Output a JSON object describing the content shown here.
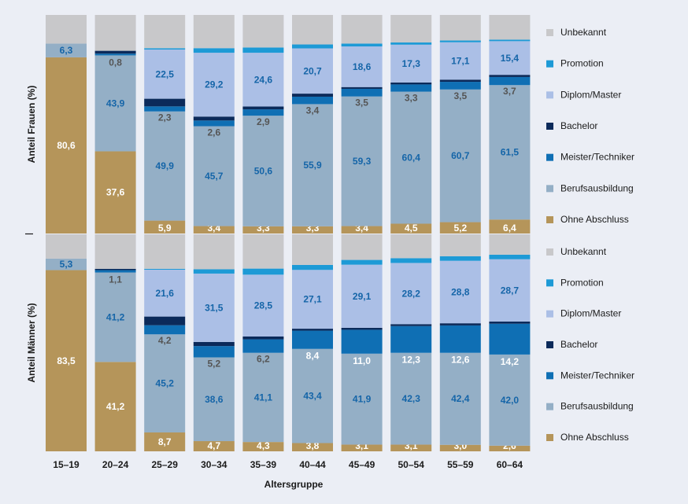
{
  "chart_data": {
    "type": "bar",
    "stacked": true,
    "xlabel": "Altersgruppe",
    "categories": [
      "15–19",
      "20–24",
      "25–29",
      "30–34",
      "35–39",
      "40–44",
      "45–49",
      "50–54",
      "55–59",
      "60–64"
    ],
    "colors": {
      "Ohne Abschluss": "#b5955a",
      "Berufsausbildung": "#94afc6",
      "Meister/Techniker": "#0f6fb4",
      "Bachelor": "#0b2a5a",
      "Diplom/Master": "#abbfe6",
      "Promotion": "#1d9ad6",
      "Unbekannt": "#c8c8ca"
    },
    "series_order": [
      "Ohne Abschluss",
      "Berufsausbildung",
      "Meister/Techniker",
      "Bachelor",
      "Diplom/Master",
      "Promotion",
      "Unbekannt"
    ],
    "panels": [
      {
        "ylabel": "Anteil Frauen (%)",
        "legend": [
          "Unbekannt",
          "Promotion",
          "Diplom/Master",
          "Bachelor",
          "Meister/Techniker",
          "Berufsausbildung",
          "Ohne Abschluss"
        ],
        "series": [
          {
            "name": "Ohne Abschluss",
            "values": [
              80.6,
              37.6,
              5.9,
              3.4,
              3.3,
              3.3,
              3.4,
              4.5,
              5.2,
              6.4
            ],
            "labels": [
              "80,6",
              "37,6",
              "5,9",
              "3,4",
              "3,3",
              "3,3",
              "3,4",
              "4,5",
              "5,2",
              "6,4"
            ]
          },
          {
            "name": "Berufsausbildung",
            "values": [
              6.3,
              43.9,
              49.9,
              45.7,
              50.6,
              55.9,
              59.3,
              60.4,
              60.7,
              61.5
            ],
            "labels": [
              "6,3",
              "43,9",
              "49,9",
              "45,7",
              "50,6",
              "55,9",
              "59,3",
              "60,4",
              "60,7",
              "61,5"
            ]
          },
          {
            "name": "Meister/Techniker",
            "values": [
              0,
              0.8,
              2.3,
              2.6,
              2.9,
              3.4,
              3.5,
              3.3,
              3.5,
              3.7
            ],
            "labels": [
              "",
              "0,8",
              "2,3",
              "2,6",
              "2,9",
              "3,4",
              "3,5",
              "3,3",
              "3,5",
              "3,7"
            ]
          },
          {
            "name": "Bachelor",
            "values": [
              0,
              1.3,
              3.5,
              1.8,
              1.3,
              1.4,
              0.8,
              0.9,
              1.0,
              1.0
            ],
            "labels": [
              "",
              "",
              "",
              "",
              "",
              "",
              "",
              "",
              "",
              ""
            ]
          },
          {
            "name": "Diplom/Master",
            "values": [
              0,
              0,
              22.5,
              29.2,
              24.6,
              20.7,
              18.6,
              17.3,
              17.1,
              15.4
            ],
            "labels": [
              "",
              "",
              "22,5",
              "29,2",
              "24,6",
              "20,7",
              "18,6",
              "17,3",
              "17,1",
              "15,4"
            ]
          },
          {
            "name": "Promotion",
            "values": [
              0,
              0,
              0.6,
              2.1,
              2.4,
              1.8,
              1.3,
              1.0,
              0.8,
              0.7
            ],
            "labels": [
              "",
              "",
              "0,6",
              "2,1",
              "2,4",
              "1,8",
              "1,3",
              "1,0",
              "0,8",
              "0,7"
            ]
          },
          {
            "name": "Unbekannt",
            "values": [
              13.1,
              16.4,
              15.2,
              15.2,
              14.9,
              13.5,
              13.1,
              12.6,
              11.7,
              11.3
            ],
            "labels": [
              "",
              "",
              "",
              "",
              "",
              "",
              "",
              "",
              "",
              ""
            ]
          }
        ]
      },
      {
        "ylabel": "Anteil Männer (%)",
        "legend": [
          "Unbekannt",
          "Promotion",
          "Diplom/Master",
          "Bachelor",
          "Meister/Techniker",
          "Berufsausbildung",
          "Ohne Abschluss"
        ],
        "series": [
          {
            "name": "Ohne Abschluss",
            "values": [
              83.5,
              41.2,
              8.7,
              4.7,
              4.3,
              3.8,
              3.1,
              3.1,
              3.0,
              2.6
            ],
            "labels": [
              "83,5",
              "41,2",
              "8,7",
              "4,7",
              "4,3",
              "3,8",
              "3,1",
              "3,1",
              "3,0",
              "2,6"
            ]
          },
          {
            "name": "Berufsausbildung",
            "values": [
              5.3,
              41.2,
              45.2,
              38.6,
              41.1,
              43.4,
              41.9,
              42.3,
              42.4,
              42.0
            ],
            "labels": [
              "5,3",
              "41,2",
              "45,2",
              "38,6",
              "41,1",
              "43,4",
              "41,9",
              "42,3",
              "42,4",
              "42,0"
            ]
          },
          {
            "name": "Meister/Techniker",
            "values": [
              0,
              1.1,
              4.2,
              5.2,
              6.2,
              8.4,
              11.0,
              12.3,
              12.6,
              14.2
            ],
            "labels": [
              "",
              "1,1",
              "4,2",
              "5,2",
              "6,2",
              "8,4",
              "11,0",
              "12,3",
              "12,6",
              "14,2"
            ]
          },
          {
            "name": "Bachelor",
            "values": [
              0,
              0.6,
              4.0,
              1.9,
              1.3,
              0.9,
              0.9,
              0.9,
              1.0,
              1.0
            ],
            "labels": [
              "",
              "",
              "",
              "",
              "",
              "",
              "",
              "",
              "",
              ""
            ]
          },
          {
            "name": "Diplom/Master",
            "values": [
              0,
              0,
              21.6,
              31.5,
              28.5,
              27.1,
              29.1,
              28.2,
              28.8,
              28.7
            ],
            "labels": [
              "",
              "",
              "21,6",
              "31,5",
              "28,5",
              "27,1",
              "29,1",
              "28,2",
              "28,8",
              "28,7"
            ]
          },
          {
            "name": "Promotion",
            "values": [
              0,
              0,
              0.4,
              2.0,
              2.8,
              2.3,
              2.2,
              2.2,
              2.1,
              2.1
            ],
            "labels": [
              "",
              "",
              "0,4",
              "2,0",
              "2,8",
              "2,3",
              "2,2",
              "2,2",
              "2,1",
              "2,1"
            ]
          },
          {
            "name": "Unbekannt",
            "values": [
              11.2,
              15.9,
              15.9,
              16.1,
              15.8,
              14.1,
              11.8,
              11.0,
              10.1,
              9.4
            ],
            "labels": [
              "",
              "",
              "",
              "",
              "",
              "",
              "",
              "",
              "",
              ""
            ]
          }
        ]
      }
    ]
  }
}
